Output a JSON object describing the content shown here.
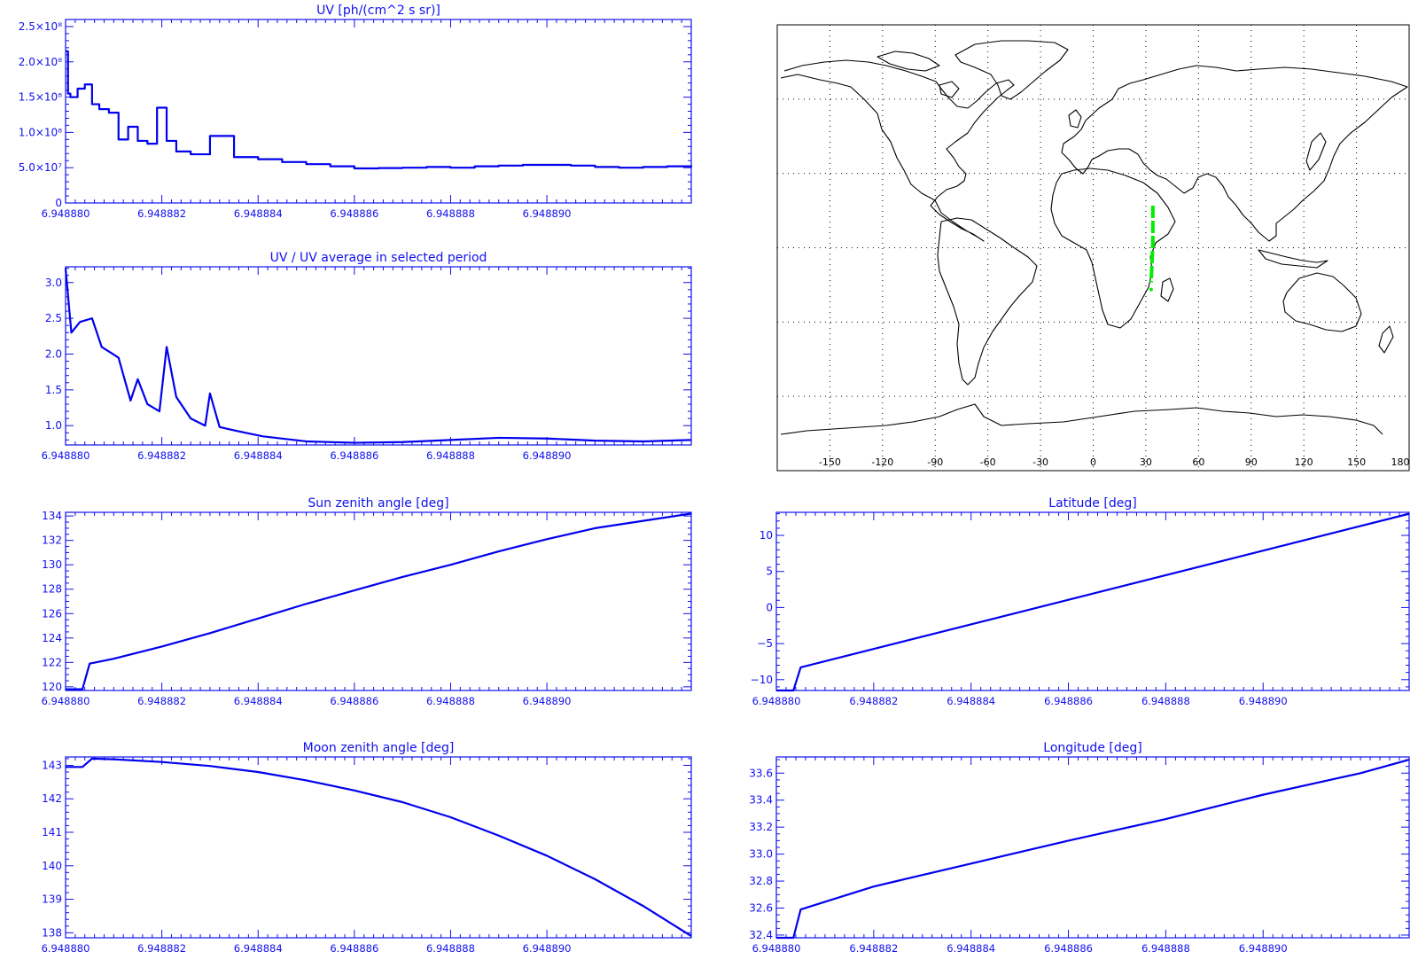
{
  "colors": {
    "axis": "#1010ee",
    "series": "#0000ee",
    "map_line": "#000000",
    "track": "#00ee00"
  },
  "x_tick_labels": [
    "6.948880",
    "6.948882",
    "6.948884",
    "6.948886",
    "6.948888",
    "6.948890"
  ],
  "chart_data": [
    {
      "id": "uv",
      "type": "line",
      "step": true,
      "title": "UV [ph/(cm^2 s sr)]",
      "xlabel": "",
      "ylabel": "",
      "ylim": [
        0,
        260000000
      ],
      "y_ticks": [
        0,
        50000000,
        100000000,
        150000000,
        200000000,
        250000000
      ],
      "y_tick_labels": [
        "0",
        "5.0×10⁷",
        "1.0×10⁸",
        "1.5×10⁸",
        "2.0×10⁸",
        "2.5×10⁸"
      ],
      "y_minor": 5,
      "x": [
        0,
        0.05,
        0.1,
        0.25,
        0.4,
        0.55,
        0.7,
        0.9,
        1.1,
        1.3,
        1.5,
        1.7,
        1.9,
        2.1,
        2.3,
        2.6,
        3,
        3.5,
        4,
        4.5,
        5,
        5.5,
        6,
        6.5,
        7,
        7.5,
        8,
        8.5,
        9,
        9.5,
        10,
        10.5,
        11,
        11.5,
        12,
        12.5,
        13
      ],
      "y": [
        215000000,
        155000000,
        150000000,
        162000000,
        168000000,
        140000000,
        133000000,
        128000000,
        90000000,
        108000000,
        88000000,
        84000000,
        135000000,
        88000000,
        73000000,
        69000000,
        95000000,
        65000000,
        62000000,
        58000000,
        55000000,
        52000000,
        49000000,
        49500000,
        50000000,
        51000000,
        50000000,
        52000000,
        53000000,
        54000000,
        54000000,
        53000000,
        51000000,
        50000000,
        51000000,
        52000000,
        53000000
      ]
    },
    {
      "id": "uv_ratio",
      "type": "line",
      "title": "UV / UV average in selected period",
      "xlabel": "",
      "ylabel": "",
      "ylim": [
        0.73,
        3.22
      ],
      "y_ticks": [
        1.0,
        1.5,
        2.0,
        2.5,
        3.0
      ],
      "y_tick_labels": [
        "1.0",
        "1.5",
        "2.0",
        "2.5",
        "3.0"
      ],
      "y_minor": 5,
      "x": [
        0,
        0.12,
        0.3,
        0.55,
        0.75,
        1.1,
        1.35,
        1.5,
        1.7,
        1.95,
        2.1,
        2.3,
        2.6,
        2.9,
        3.0,
        3.2,
        3.6,
        4.1,
        5,
        6,
        7,
        8,
        9,
        10,
        11,
        12,
        13
      ],
      "y": [
        3.2,
        2.3,
        2.45,
        2.5,
        2.1,
        1.95,
        1.35,
        1.65,
        1.3,
        1.2,
        2.1,
        1.4,
        1.1,
        1.0,
        1.45,
        0.98,
        0.92,
        0.85,
        0.78,
        0.76,
        0.77,
        0.8,
        0.83,
        0.82,
        0.79,
        0.78,
        0.8
      ]
    },
    {
      "id": "sun_zenith",
      "type": "line",
      "title": "Sun zenith angle [deg]",
      "xlabel": "",
      "ylabel": "",
      "ylim": [
        119.7,
        134.3
      ],
      "y_ticks": [
        120,
        122,
        124,
        126,
        128,
        130,
        132,
        134
      ],
      "y_tick_labels": [
        "120",
        "122",
        "124",
        "126",
        "128",
        "130",
        "132",
        "134"
      ],
      "y_minor": 4,
      "x": [
        0,
        0.35,
        0.5,
        1.0,
        2.0,
        3.0,
        4.0,
        5.0,
        6.0,
        7.0,
        8.0,
        9.0,
        10.0,
        11.0,
        12.0,
        13.0
      ],
      "y": [
        119.8,
        119.8,
        121.9,
        122.3,
        123.3,
        124.4,
        125.6,
        126.8,
        127.9,
        129.0,
        130.0,
        131.1,
        132.1,
        133.0,
        133.6,
        134.2
      ]
    },
    {
      "id": "latitude",
      "type": "line",
      "title": "Latitude [deg]",
      "xlabel": "",
      "ylabel": "",
      "ylim": [
        -11.5,
        13.2
      ],
      "y_ticks": [
        -10,
        -5,
        0,
        5,
        10
      ],
      "y_tick_labels": [
        "−10",
        "−5",
        "0",
        "5",
        "10"
      ],
      "y_minor": 5,
      "x": [
        0,
        0.35,
        0.5,
        13.0
      ],
      "y": [
        -11.5,
        -11.5,
        -8.3,
        13.0
      ]
    },
    {
      "id": "moon_zenith",
      "type": "line",
      "title": "Moon zenith angle [deg]",
      "xlabel": "",
      "ylabel": "",
      "ylim": [
        137.85,
        143.25
      ],
      "y_ticks": [
        138,
        139,
        140,
        141,
        142,
        143
      ],
      "y_tick_labels": [
        "138",
        "139",
        "140",
        "141",
        "142",
        "143"
      ],
      "y_minor": 5,
      "x": [
        0,
        0.35,
        0.55,
        1,
        2,
        3,
        4,
        5,
        6,
        7,
        8,
        9,
        10,
        11,
        12,
        13
      ],
      "y": [
        142.95,
        142.95,
        143.2,
        143.18,
        143.1,
        142.98,
        142.8,
        142.55,
        142.25,
        141.9,
        141.45,
        140.9,
        140.3,
        139.6,
        138.8,
        137.9
      ]
    },
    {
      "id": "longitude",
      "type": "line",
      "title": "Longitude [deg]",
      "xlabel": "",
      "ylabel": "",
      "ylim": [
        32.38,
        33.72
      ],
      "y_ticks": [
        32.4,
        32.6,
        32.8,
        33.0,
        33.2,
        33.4,
        33.6
      ],
      "y_tick_labels": [
        "32.4",
        "32.6",
        "32.8",
        "33.0",
        "33.2",
        "33.4",
        "33.6"
      ],
      "y_minor": 4,
      "x": [
        0,
        0.35,
        0.5,
        2,
        4,
        6,
        8,
        10,
        12,
        13
      ],
      "y": [
        32.38,
        32.38,
        32.59,
        32.76,
        32.93,
        33.1,
        33.26,
        33.44,
        33.6,
        33.7
      ]
    }
  ],
  "map": {
    "x_tick_labels": [
      "-150",
      "-120",
      "-90",
      "-60",
      "-30",
      "0",
      "30",
      "60",
      "90",
      "120",
      "150",
      "180"
    ],
    "track": {
      "lon": [
        34,
        34,
        33
      ],
      "lat": [
        17,
        2,
        -14
      ]
    }
  }
}
